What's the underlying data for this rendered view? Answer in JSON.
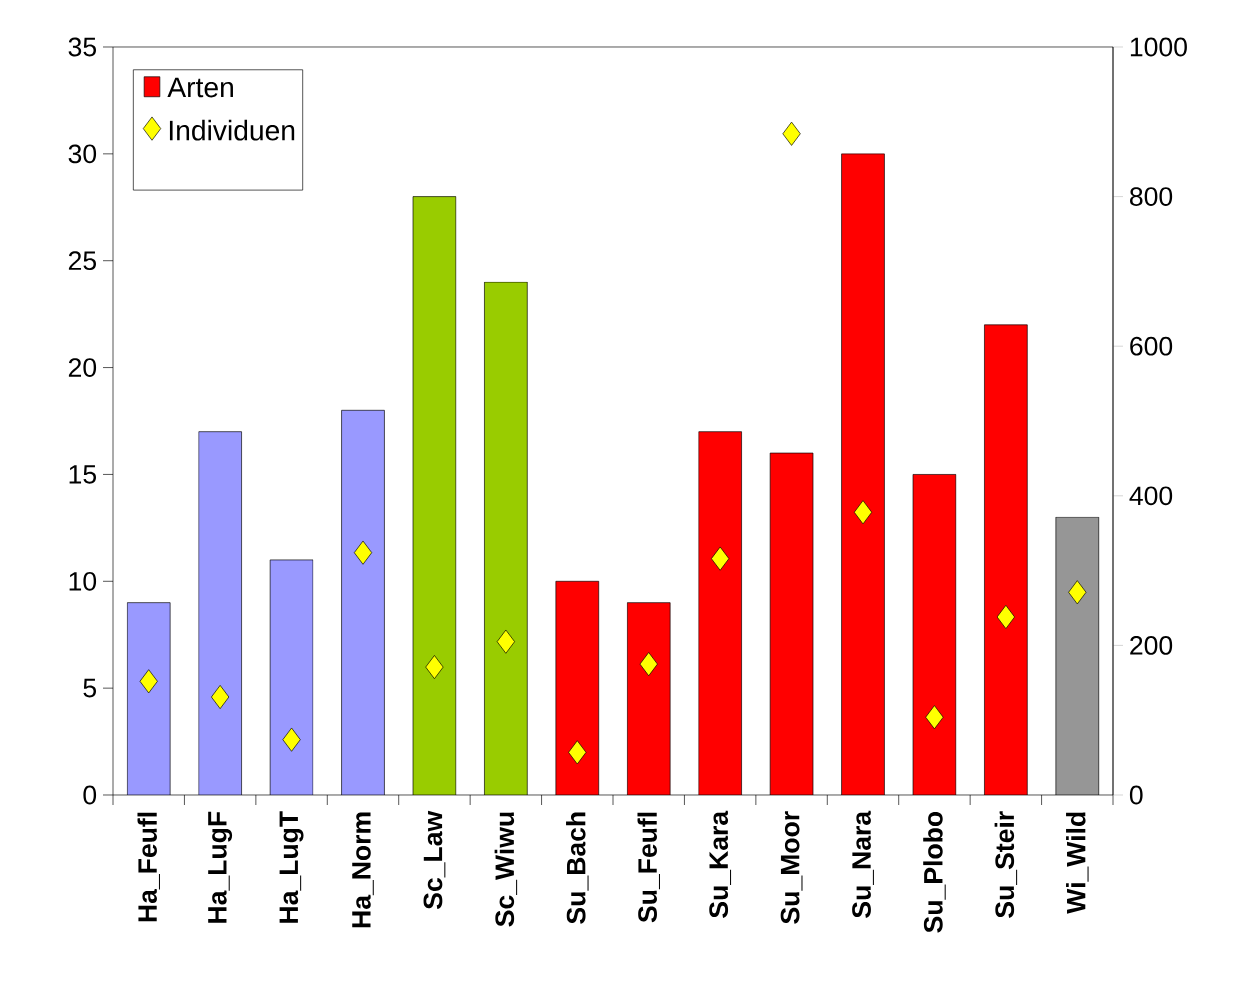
{
  "chart_data": {
    "type": "bar",
    "categories": [
      "Ha_Feufl",
      "Ha_LugF",
      "Ha_LugT",
      "Ha_Norm",
      "Sc_Law",
      "Sc_Wiwu",
      "Su_Bach",
      "Su_Feufl",
      "Su_Kara",
      "Su_Moor",
      "Su_Nara",
      "Su_Plobo",
      "Su_Steir",
      "Wi_Wild"
    ],
    "series": [
      {
        "name": "Arten",
        "color": "#ff0000",
        "colors": [
          "#9999ff",
          "#9999ff",
          "#9999ff",
          "#9999ff",
          "#99cc00",
          "#99cc00",
          "#ff0000",
          "#ff0000",
          "#ff0000",
          "#ff0000",
          "#ff0000",
          "#ff0000",
          "#ff0000",
          "#969696"
        ],
        "values": [
          9,
          17,
          11,
          18,
          28,
          24,
          10,
          9,
          17,
          16,
          30,
          15,
          22,
          13
        ]
      },
      {
        "name": "Individuen",
        "type": "scatter",
        "axis": "y2",
        "marker": "diamond",
        "color": "#ffff00",
        "values": [
          152,
          131,
          74,
          324,
          171,
          205,
          57,
          175,
          316,
          884,
          378,
          104,
          238,
          271
        ]
      }
    ],
    "ylim": [
      0,
      35
    ],
    "yticks": [
      0,
      5,
      10,
      15,
      20,
      25,
      30,
      35
    ],
    "y2lim": [
      0,
      1000
    ],
    "y2ticks": [
      0,
      200,
      400,
      600,
      800,
      1000
    ],
    "legend": "top left",
    "grid": false
  }
}
